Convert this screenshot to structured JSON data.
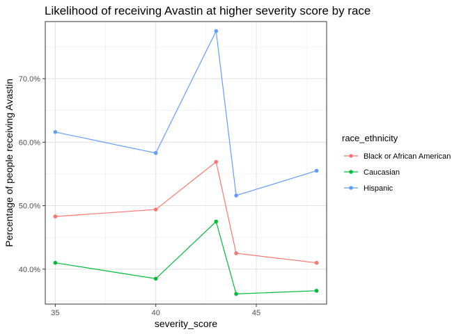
{
  "chart_data": {
    "type": "line",
    "title": "Likelihood of receiving Avastin at higher severity score by race",
    "xlabel": "severity_score",
    "ylabel": "Percentage of people receiving Avastin",
    "x": [
      35,
      40,
      43,
      44,
      48
    ],
    "xlim": [
      34.5,
      48.5
    ],
    "ylim": [
      34.5,
      79.0
    ],
    "x_ticks": [
      35,
      40,
      45
    ],
    "y_ticks": [
      40,
      50,
      60,
      70
    ],
    "y_tick_labels": [
      "40.0%",
      "50.0%",
      "60.0%",
      "70.0%"
    ],
    "grid": true,
    "legend_title": "race_ethnicity",
    "legend_position": "right",
    "series": [
      {
        "name": "Black or African American",
        "color": "#F8766D",
        "values": [
          48.3,
          49.4,
          56.9,
          42.5,
          41.0
        ]
      },
      {
        "name": "Caucasian",
        "color": "#00BA38",
        "values": [
          41.0,
          38.5,
          47.5,
          36.1,
          36.6
        ]
      },
      {
        "name": "Hispanic",
        "color": "#619CFF",
        "values": [
          61.6,
          58.3,
          77.5,
          51.6,
          55.5
        ]
      }
    ]
  }
}
